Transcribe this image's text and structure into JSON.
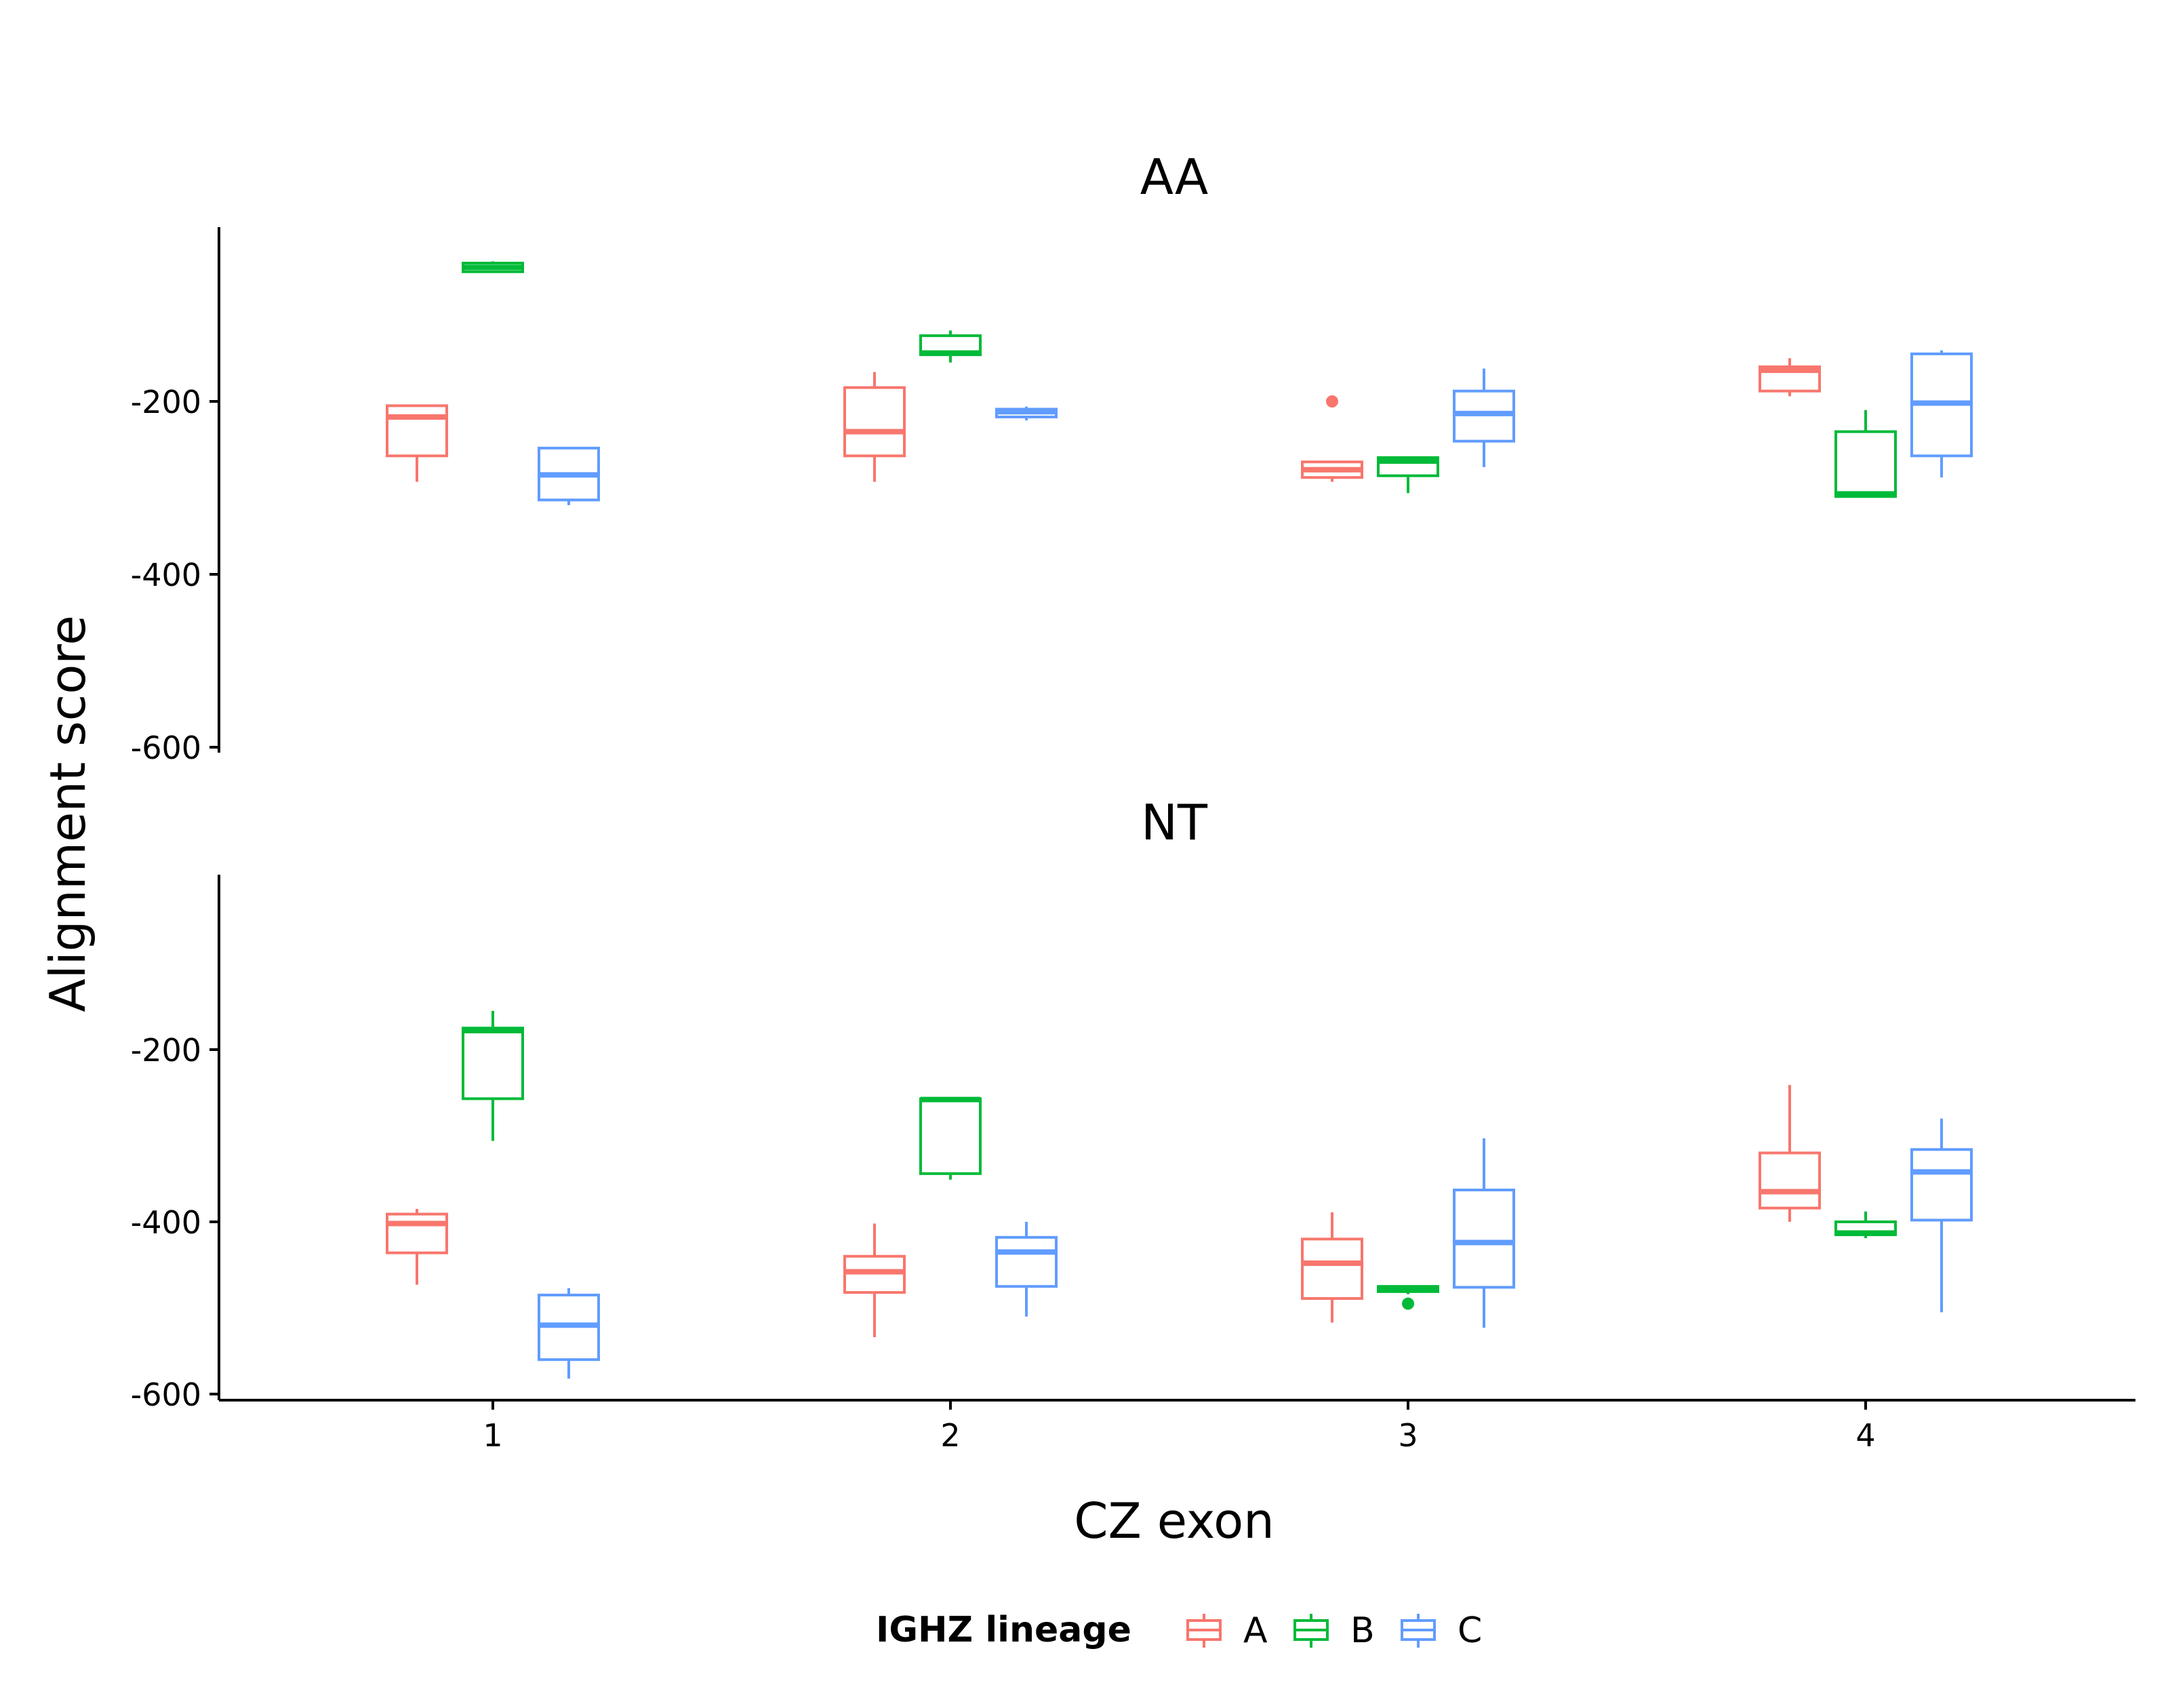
{
  "chart_data": {
    "type": "box",
    "ylabel": "Alignment score",
    "xlabel": "CZ exon",
    "legend": {
      "title": "IGHZ lineage",
      "position": "bottom",
      "items": [
        {
          "label": "A",
          "color": "#F8766D"
        },
        {
          "label": "B",
          "color": "#00BA38"
        },
        {
          "label": "C",
          "color": "#619CFF"
        }
      ]
    },
    "grid": false,
    "categories": [
      "1",
      "2",
      "3",
      "4"
    ],
    "ylim": [
      -600,
      -5
    ],
    "yticks": [
      "-200",
      "-400",
      "-600"
    ],
    "ytick_values": [
      -200,
      -400,
      -600
    ],
    "facets": [
      {
        "title": "AA",
        "groups": [
          {
            "x": "1",
            "series": "A",
            "whisker_low": -293,
            "q1": -263,
            "median": -218,
            "q3": -205,
            "whisker_high": -205,
            "outliers": []
          },
          {
            "x": "1",
            "series": "B",
            "whisker_low": -50,
            "q1": -50,
            "median": -45,
            "q3": -40,
            "whisker_high": -38,
            "outliers": []
          },
          {
            "x": "1",
            "series": "C",
            "whisker_low": -320,
            "q1": -314,
            "median": -285,
            "q3": -254,
            "whisker_high": -254,
            "outliers": []
          },
          {
            "x": "2",
            "series": "A",
            "whisker_low": -293,
            "q1": -263,
            "median": -235,
            "q3": -184,
            "whisker_high": -166,
            "outliers": []
          },
          {
            "x": "2",
            "series": "B",
            "whisker_low": -155,
            "q1": -146,
            "median": -144,
            "q3": -124,
            "whisker_high": -118,
            "outliers": []
          },
          {
            "x": "2",
            "series": "C",
            "whisker_low": -222,
            "q1": -218,
            "median": -212,
            "q3": -209,
            "whisker_high": -206,
            "outliers": []
          },
          {
            "x": "3",
            "series": "A",
            "whisker_low": -293,
            "q1": -288,
            "median": -279,
            "q3": -270,
            "whisker_high": -270,
            "outliers": [
              -200
            ]
          },
          {
            "x": "3",
            "series": "B",
            "whisker_low": -306,
            "q1": -286,
            "median": -269,
            "q3": -265,
            "whisker_high": -265,
            "outliers": []
          },
          {
            "x": "3",
            "series": "C",
            "whisker_low": -276,
            "q1": -246,
            "median": -214,
            "q3": -188,
            "whisker_high": -162,
            "outliers": []
          },
          {
            "x": "4",
            "series": "A",
            "whisker_low": -194,
            "q1": -188,
            "median": -164,
            "q3": -160,
            "whisker_high": -150,
            "outliers": []
          },
          {
            "x": "4",
            "series": "B",
            "whisker_low": -310,
            "q1": -310,
            "median": -307,
            "q3": -235,
            "whisker_high": -210,
            "outliers": []
          },
          {
            "x": "4",
            "series": "C",
            "whisker_low": -288,
            "q1": -263,
            "median": -202,
            "q3": -145,
            "whisker_high": -141,
            "outliers": []
          }
        ]
      },
      {
        "title": "NT",
        "groups": [
          {
            "x": "1",
            "series": "A",
            "whisker_low": -473,
            "q1": -436,
            "median": -402,
            "q3": -391,
            "whisker_high": -385,
            "outliers": []
          },
          {
            "x": "1",
            "series": "B",
            "whisker_low": -306,
            "q1": -257,
            "median": -178,
            "q3": -175,
            "whisker_high": -155,
            "outliers": []
          },
          {
            "x": "1",
            "series": "C",
            "whisker_low": -582,
            "q1": -560,
            "median": -520,
            "q3": -485,
            "whisker_high": -477,
            "outliers": []
          },
          {
            "x": "2",
            "series": "A",
            "whisker_low": -534,
            "q1": -482,
            "median": -458,
            "q3": -440,
            "whisker_high": -402,
            "outliers": []
          },
          {
            "x": "2",
            "series": "B",
            "whisker_low": -351,
            "q1": -344,
            "median": -258,
            "q3": -257,
            "whisker_high": -257,
            "outliers": []
          },
          {
            "x": "2",
            "series": "C",
            "whisker_low": -510,
            "q1": -475,
            "median": -435,
            "q3": -418,
            "whisker_high": -400,
            "outliers": []
          },
          {
            "x": "3",
            "series": "A",
            "whisker_low": -517,
            "q1": -489,
            "median": -448,
            "q3": -420,
            "whisker_high": -389,
            "outliers": []
          },
          {
            "x": "3",
            "series": "B",
            "whisker_low": -484,
            "q1": -481,
            "median": -477,
            "q3": -475,
            "whisker_high": -475,
            "outliers": [
              -495
            ]
          },
          {
            "x": "3",
            "series": "C",
            "whisker_low": -523,
            "q1": -476,
            "median": -424,
            "q3": -363,
            "whisker_high": -303,
            "outliers": []
          },
          {
            "x": "4",
            "series": "A",
            "whisker_low": -400,
            "q1": -384,
            "median": -365,
            "q3": -320,
            "whisker_high": -241,
            "outliers": []
          },
          {
            "x": "4",
            "series": "B",
            "whisker_low": -419,
            "q1": -415,
            "median": -413,
            "q3": -400,
            "whisker_high": -388,
            "outliers": []
          },
          {
            "x": "4",
            "series": "C",
            "whisker_low": -505,
            "q1": -398,
            "median": -342,
            "q3": -316,
            "whisker_high": -280,
            "outliers": []
          }
        ]
      }
    ]
  }
}
